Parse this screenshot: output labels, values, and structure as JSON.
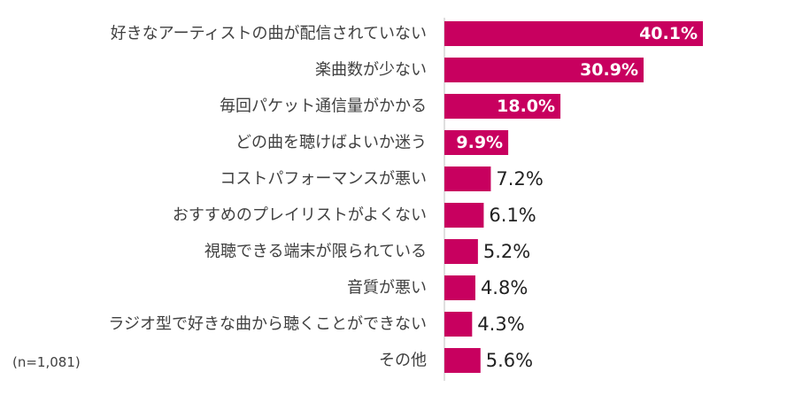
{
  "note": "(n=1,081)",
  "colors": {
    "bar": "#c8005f",
    "axis": "#bfbfbf"
  },
  "chart_data": {
    "type": "bar",
    "orientation": "horizontal",
    "title": "",
    "xlabel": "",
    "ylabel": "",
    "xlim": [
      0,
      40.1
    ],
    "grid": false,
    "categories": [
      "好きなアーティストの曲が配信されていない",
      "楽曲数が少ない",
      "毎回パケット通信量がかかる",
      "どの曲を聴けばよいか迷う",
      "コストパフォーマンスが悪い",
      "おすすめのプレイリストがよくない",
      "視聴できる端末が限られている",
      "音質が悪い",
      "ラジオ型で好きな曲から聴くことができない",
      "その他"
    ],
    "values": [
      40.1,
      30.9,
      18.0,
      9.9,
      7.2,
      6.1,
      5.2,
      4.8,
      4.3,
      5.6
    ],
    "labels": [
      "40.1%",
      "30.9%",
      "18.0%",
      "9.9%",
      "7.2%",
      "6.1%",
      "5.2%",
      "4.8%",
      "4.3%",
      "5.6%"
    ]
  }
}
